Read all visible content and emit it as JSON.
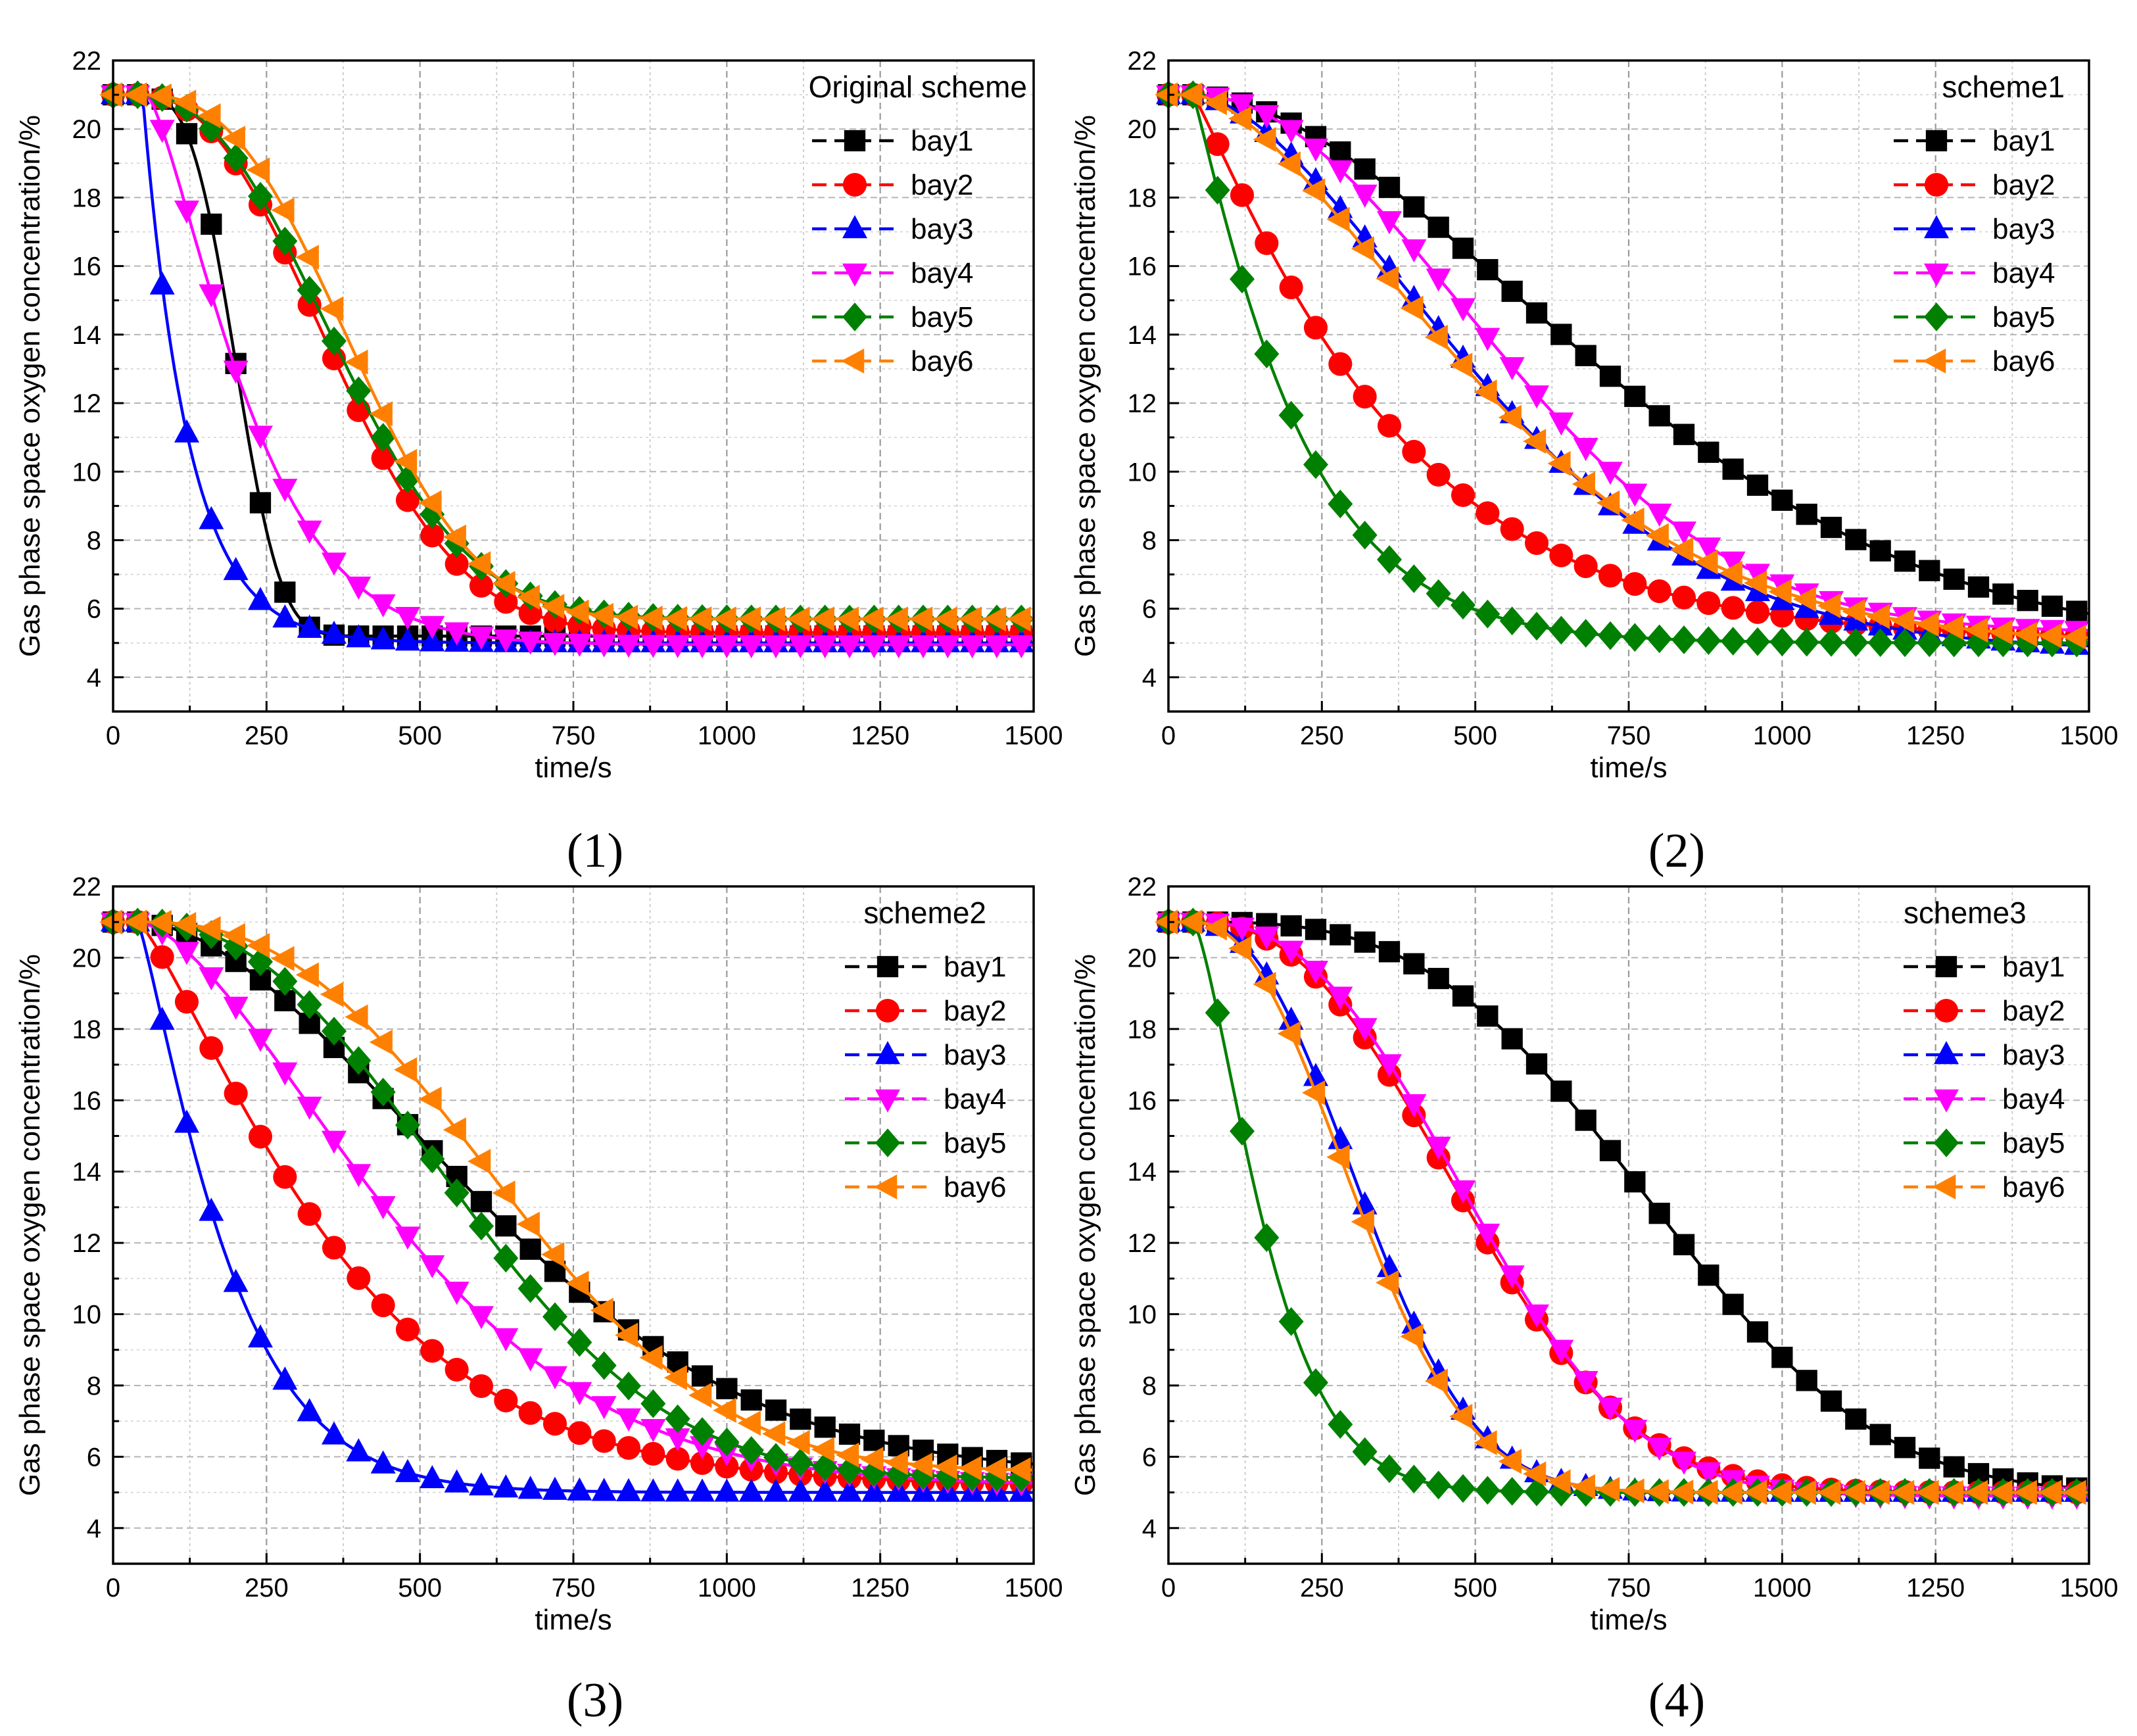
{
  "figure": {
    "captions": [
      "(1)",
      "(2)",
      "(3)",
      "(4)"
    ]
  },
  "series_styles": [
    {
      "name": "bay1",
      "color": "#000000",
      "marker": "square"
    },
    {
      "name": "bay2",
      "color": "#ff0000",
      "marker": "circle"
    },
    {
      "name": "bay3",
      "color": "#0000ff",
      "marker": "triangle-up"
    },
    {
      "name": "bay4",
      "color": "#ff00ff",
      "marker": "triangle-down"
    },
    {
      "name": "bay5",
      "color": "#008000",
      "marker": "diamond"
    },
    {
      "name": "bay6",
      "color": "#ff8000",
      "marker": "triangle-left"
    }
  ],
  "chart_data": [
    {
      "type": "line",
      "title": "Original scheme",
      "xlabel": "time/s",
      "ylabel": "Gas phase space oxygen concentration/%",
      "xlim": [
        0,
        1500
      ],
      "ylim": [
        3,
        22
      ],
      "xticks": [
        0,
        250,
        500,
        750,
        1000,
        1250,
        1500
      ],
      "yticks": [
        4,
        6,
        8,
        10,
        12,
        14,
        16,
        18,
        20,
        22
      ],
      "grid": true,
      "legend": "top-right",
      "params": {
        "bay1": {
          "c0": 21.0,
          "cinf": 5.2,
          "t0": 40,
          "tau": 180,
          "n": 3.2
        },
        "bay2": {
          "c0": 21.0,
          "cinf": 5.3,
          "t0": 40,
          "tau": 380,
          "n": 2.3
        },
        "bay3": {
          "c0": 21.0,
          "cinf": 5.0,
          "t0": 48,
          "tau": 75,
          "n": 1.0
        },
        "bay4": {
          "c0": 21.0,
          "cinf": 4.95,
          "t0": 55,
          "tau": 190,
          "n": 1.35
        },
        "bay5": {
          "c0": 21.0,
          "cinf": 5.7,
          "t0": 40,
          "tau": 390,
          "n": 2.3
        },
        "bay6": {
          "c0": 21.0,
          "cinf": 5.7,
          "t0": 40,
          "tau": 410,
          "n": 2.6
        }
      }
    },
    {
      "type": "line",
      "title": "scheme1",
      "xlabel": "time/s",
      "ylabel": "Gas phase space oxygen concentration/%",
      "xlim": [
        0,
        1500
      ],
      "ylim": [
        3,
        22
      ],
      "xticks": [
        0,
        250,
        500,
        750,
        1000,
        1250,
        1500
      ],
      "yticks": [
        4,
        6,
        8,
        10,
        12,
        14,
        16,
        18,
        20,
        22
      ],
      "grid": true,
      "legend": "top-right",
      "params": {
        "bay1": {
          "c0": 21.0,
          "cinf": 4.9,
          "t0": 40,
          "tau": 820,
          "n": 1.8
        },
        "bay2": {
          "c0": 21.0,
          "cinf": 5.1,
          "t0": 40,
          "tau": 340,
          "n": 1.1
        },
        "bay3": {
          "c0": 21.0,
          "cinf": 4.8,
          "t0": 40,
          "tau": 570,
          "n": 1.7
        },
        "bay4": {
          "c0": 21.0,
          "cinf": 5.3,
          "t0": 40,
          "tau": 620,
          "n": 2.0
        },
        "bay5": {
          "c0": 21.0,
          "cinf": 5.0,
          "t0": 40,
          "tau": 180,
          "n": 1.1
        },
        "bay6": {
          "c0": 21.0,
          "cinf": 5.0,
          "t0": 40,
          "tau": 560,
          "n": 1.6
        }
      }
    },
    {
      "type": "line",
      "title": "scheme2",
      "xlabel": "time/s",
      "ylabel": "Gas phase space oxygen concentration/%",
      "xlim": [
        0,
        1500
      ],
      "ylim": [
        3,
        22
      ],
      "xticks": [
        0,
        250,
        500,
        750,
        1000,
        1250,
        1500
      ],
      "yticks": [
        4,
        6,
        8,
        10,
        12,
        14,
        16,
        18,
        20,
        22
      ],
      "grid": true,
      "legend": "top-right",
      "params": {
        "bay1": {
          "c0": 21.0,
          "cinf": 5.5,
          "t0": 40,
          "tau": 680,
          "n": 1.8
        },
        "bay2": {
          "c0": 21.0,
          "cinf": 5.2,
          "t0": 40,
          "tau": 360,
          "n": 1.25
        },
        "bay3": {
          "c0": 21.0,
          "cinf": 5.0,
          "t0": 40,
          "tau": 160,
          "n": 1.2
        },
        "bay4": {
          "c0": 21.0,
          "cinf": 5.2,
          "t0": 40,
          "tau": 500,
          "n": 1.6
        },
        "bay5": {
          "c0": 21.0,
          "cinf": 5.4,
          "t0": 40,
          "tau": 620,
          "n": 2.3
        },
        "bay6": {
          "c0": 21.0,
          "cinf": 5.6,
          "t0": 40,
          "tau": 700,
          "n": 2.5
        }
      }
    },
    {
      "type": "line",
      "title": "scheme3",
      "xlabel": "time/s",
      "ylabel": "Gas phase space oxygen concentration/%",
      "xlim": [
        0,
        1500
      ],
      "ylim": [
        3,
        22
      ],
      "xticks": [
        0,
        250,
        500,
        750,
        1000,
        1250,
        1500
      ],
      "yticks": [
        4,
        6,
        8,
        10,
        12,
        14,
        16,
        18,
        20,
        22
      ],
      "grid": true,
      "legend": "top-left",
      "params": {
        "bay1": {
          "c0": 21.0,
          "cinf": 5.0,
          "t0": 40,
          "tau": 850,
          "n": 3.0
        },
        "bay2": {
          "c0": 21.0,
          "cinf": 5.0,
          "t0": 40,
          "tau": 520,
          "n": 2.4
        },
        "bay3": {
          "c0": 21.0,
          "cinf": 5.0,
          "t0": 40,
          "tau": 330,
          "n": 2.3
        },
        "bay4": {
          "c0": 21.0,
          "cinf": 4.9,
          "t0": 40,
          "tau": 530,
          "n": 2.5
        },
        "bay5": {
          "c0": 21.0,
          "cinf": 5.0,
          "t0": 40,
          "tau": 140,
          "n": 1.4
        },
        "bay6": {
          "c0": 21.0,
          "cinf": 5.0,
          "t0": 40,
          "tau": 320,
          "n": 2.2
        }
      }
    }
  ]
}
